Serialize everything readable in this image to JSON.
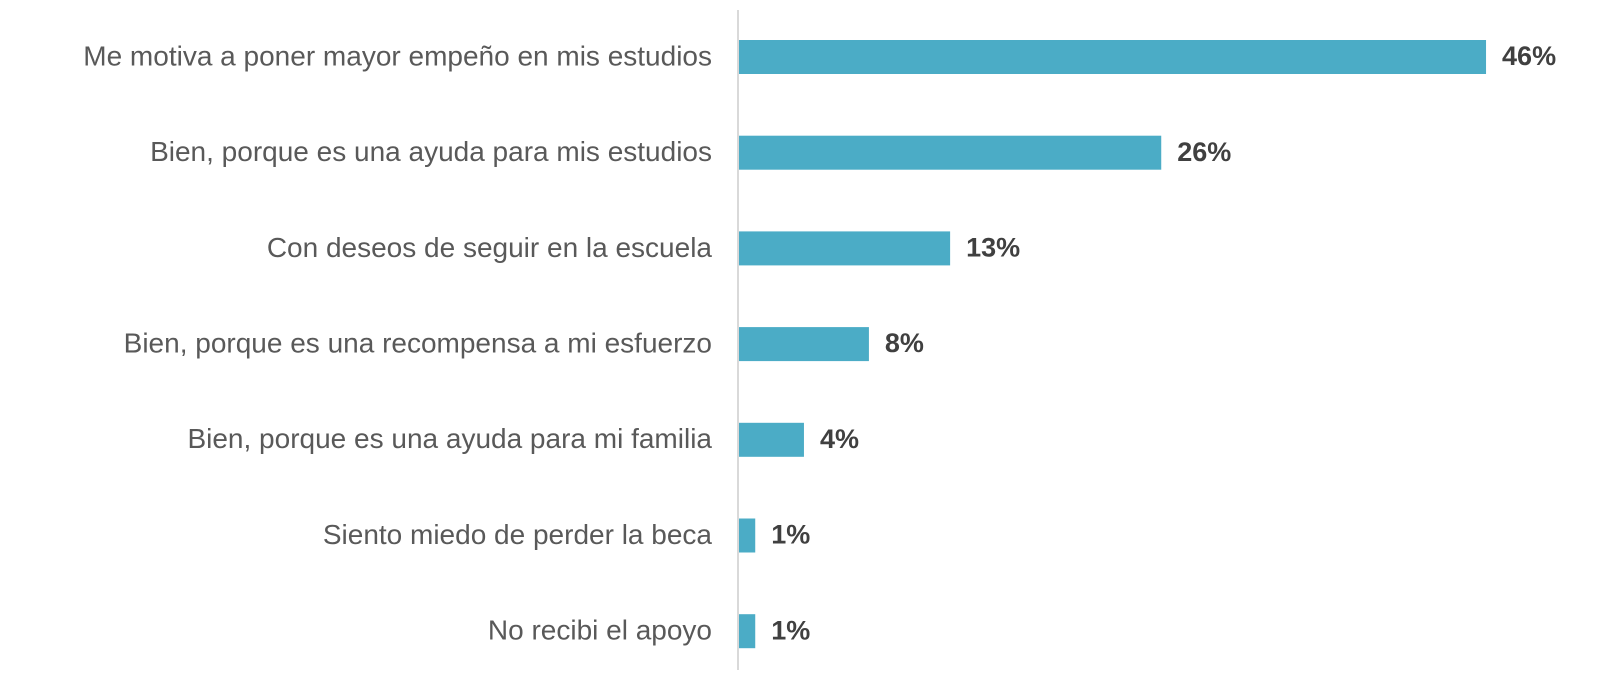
{
  "chart_data": {
    "type": "bar",
    "orientation": "horizontal",
    "categories": [
      "Me motiva a poner mayor empeño en mis estudios",
      "Bien, porque es una ayuda para mis estudios",
      "Con deseos de seguir en la escuela",
      "Bien, porque es una recompensa a mi esfuerzo",
      "Bien, porque es una ayuda para mi familia",
      "Siento miedo de perder la beca",
      "No recibi el apoyo"
    ],
    "values": [
      46,
      26,
      13,
      8,
      4,
      1,
      1
    ],
    "value_labels": [
      "46%",
      "26%",
      "13%",
      "8%",
      "4%",
      "1%",
      "1%"
    ],
    "color": "#4bacc6"
  }
}
